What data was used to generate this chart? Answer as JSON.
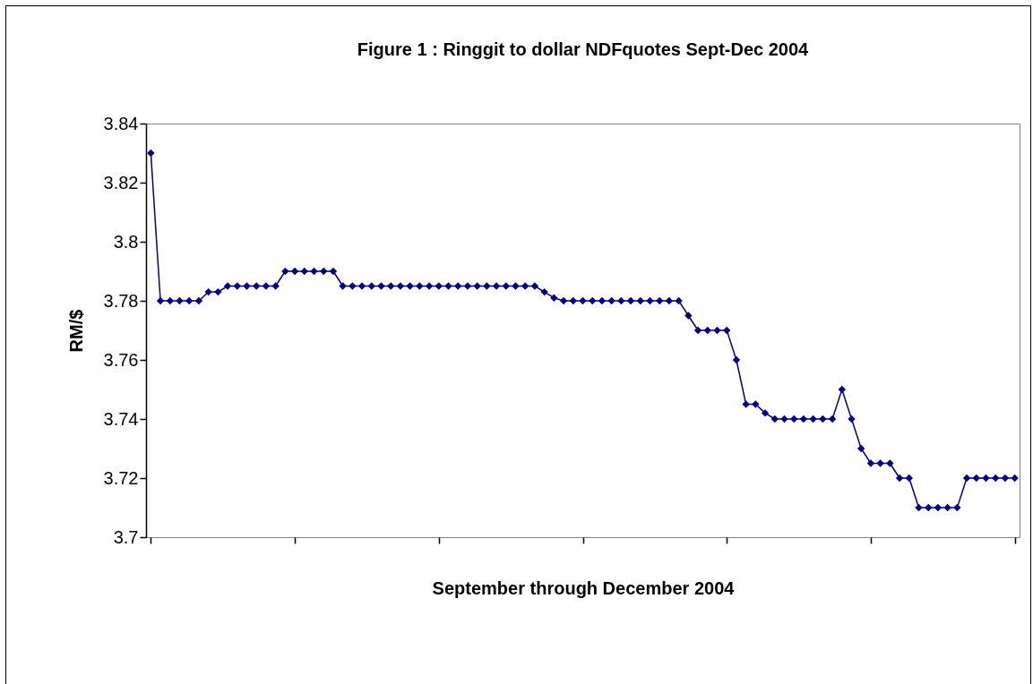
{
  "chart_data": {
    "type": "line",
    "title": "Figure 1 : Ringgit to dollar NDFquotes Sept-Dec 2004",
    "xlabel": "September through December 2004",
    "ylabel": "RM/$",
    "categories": [
      null,
      null,
      null,
      null,
      null,
      null,
      null,
      null,
      null,
      null,
      null,
      null,
      null,
      null,
      null,
      null,
      null,
      null,
      null,
      null,
      null,
      null,
      null,
      null,
      null,
      null,
      null,
      null,
      null,
      null,
      null,
      null,
      null,
      null,
      null,
      null,
      null,
      null,
      null,
      null,
      null,
      null,
      null,
      null,
      null,
      null,
      null,
      null,
      null,
      null,
      null,
      null,
      null,
      null,
      null,
      null,
      null,
      null,
      null,
      null,
      null,
      null,
      null,
      null,
      null,
      null,
      null,
      null,
      null,
      null,
      null,
      null,
      null,
      null,
      null,
      null,
      null,
      null,
      null,
      null,
      null,
      null,
      null,
      null,
      null,
      null,
      null,
      null,
      null,
      null,
      null
    ],
    "series": [
      {
        "color": "#000080",
        "values": [
          3.83,
          3.78,
          3.78,
          3.78,
          3.78,
          3.78,
          3.783,
          3.783,
          3.785,
          3.785,
          3.785,
          3.785,
          3.785,
          3.785,
          3.79,
          3.79,
          3.79,
          3.79,
          3.79,
          3.79,
          3.785,
          3.785,
          3.785,
          3.785,
          3.785,
          3.785,
          3.785,
          3.785,
          3.785,
          3.785,
          3.785,
          3.785,
          3.785,
          3.785,
          3.785,
          3.785,
          3.785,
          3.785,
          3.785,
          3.785,
          3.785,
          3.783,
          3.781,
          3.78,
          3.78,
          3.78,
          3.78,
          3.78,
          3.78,
          3.78,
          3.78,
          3.78,
          3.78,
          3.78,
          3.78,
          3.78,
          3.775,
          3.77,
          3.77,
          3.77,
          3.77,
          3.76,
          3.745,
          3.745,
          3.742,
          3.74,
          3.74,
          3.74,
          3.74,
          3.74,
          3.74,
          3.74,
          3.75,
          3.74,
          3.73,
          3.725,
          3.725,
          3.725,
          3.72,
          3.72,
          3.71,
          3.71,
          3.71,
          3.71,
          3.71,
          3.72,
          3.72,
          3.72,
          3.72,
          3.72,
          3.72
        ]
      }
    ],
    "ylim": [
      3.7,
      3.84
    ],
    "yticks": [
      3.7,
      3.72,
      3.74,
      3.76,
      3.78,
      3.8,
      3.82,
      3.84
    ],
    "grid": false,
    "marker": "diamond",
    "line_style": "solid",
    "tick_labels": "y"
  }
}
